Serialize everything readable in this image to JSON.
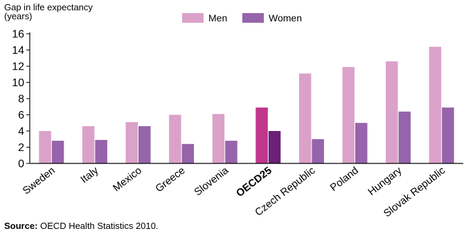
{
  "chart_data": {
    "type": "bar",
    "ylabel": "Gap in life expectancy\n(years)",
    "ylim": [
      0,
      16
    ],
    "yticks": [
      0,
      2,
      4,
      6,
      8,
      10,
      12,
      14,
      16
    ],
    "categories": [
      "Sweden",
      "Italy",
      "Mexico",
      "Greece",
      "Slovenia",
      "OECD25",
      "Czech Republic",
      "Poland",
      "Hungary",
      "Slovak Republic"
    ],
    "highlight_category": "OECD25",
    "series": [
      {
        "name": "Men",
        "color": "#dba2c9",
        "highlight_color": "#c0368d",
        "values": [
          4.0,
          4.6,
          5.1,
          6.0,
          6.1,
          6.9,
          11.1,
          11.9,
          12.6,
          14.4
        ]
      },
      {
        "name": "Women",
        "color": "#9564aa",
        "highlight_color": "#6b2176",
        "values": [
          2.8,
          2.9,
          4.6,
          2.4,
          2.8,
          4.0,
          3.0,
          5.0,
          6.4,
          6.9
        ]
      }
    ],
    "legend_position": "top-center",
    "grid": false
  },
  "source": {
    "prefix": "Source:",
    "text": " OECD Health Statistics 2010."
  }
}
